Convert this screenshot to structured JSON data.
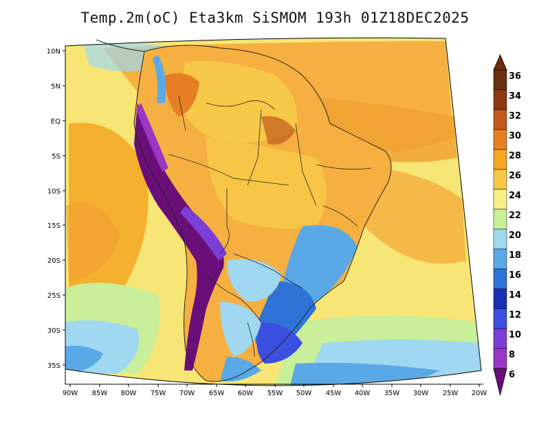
{
  "title": "Temp.2m(oC) Eta3km SiSMOM 193h 01Z18DEC2025",
  "map": {
    "variable": "2 m temperature",
    "lat_ticks": [
      "10N",
      "5N",
      "EQ",
      "5S",
      "10S",
      "15S",
      "20S",
      "25S",
      "30S",
      "35S"
    ],
    "lon_ticks": [
      "90W",
      "85W",
      "80W",
      "75W",
      "70W",
      "65W",
      "60W",
      "55W",
      "50W",
      "45W",
      "40W",
      "35W",
      "30W",
      "25W",
      "20W"
    ]
  },
  "colorbar": {
    "labels": [
      "36",
      "34",
      "32",
      "30",
      "28",
      "26",
      "24",
      "22",
      "20",
      "18",
      "16",
      "14",
      "12",
      "10",
      "8",
      "6"
    ],
    "colors": [
      "#6b2e0f",
      "#8b3a12",
      "#c05a1c",
      "#e67e22",
      "#f5a623",
      "#f7c948",
      "#f8ef8a",
      "#c9ef9a",
      "#9fd8f0",
      "#5aa9e6",
      "#2f73d6",
      "#1b2fb3",
      "#3b4fe0",
      "#7b3fd6",
      "#9a38c4",
      "#6a0f7a"
    ]
  }
}
